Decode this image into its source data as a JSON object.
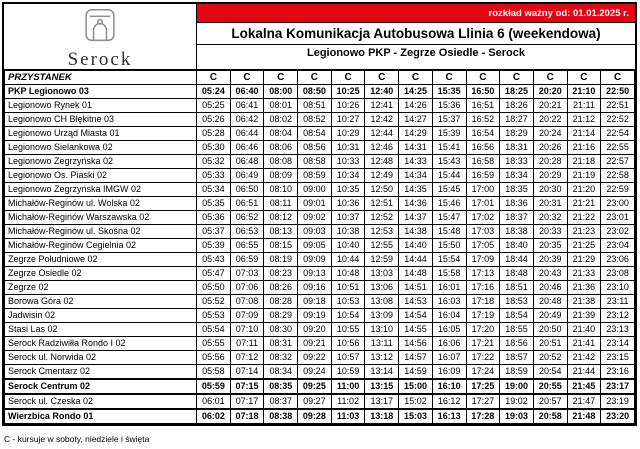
{
  "colors": {
    "banner_bg": "#e30613",
    "banner_text": "#ffffff",
    "logo_gray": "#8f8f8f"
  },
  "header": {
    "validity": "rozkład ważny od: 01.01.2025 r.",
    "title": "Lokalna Komunikacja Autobusowa Llinia 6 (weekendowa)",
    "route": "Legionowo PKP - Zegrze Osiedle - Serock",
    "brand": "Serock"
  },
  "table": {
    "stop_header": "PRZYSTANEK",
    "course_labels": [
      "C",
      "C",
      "C",
      "C",
      "C",
      "C",
      "C",
      "C",
      "C",
      "C",
      "C",
      "C",
      "C"
    ],
    "rows": [
      {
        "stop": "PKP Legionowo 03",
        "bold": true,
        "thick_top": false,
        "times": [
          "05:24",
          "06:40",
          "08:00",
          "08:50",
          "10:25",
          "12:40",
          "14:25",
          "15:35",
          "16:50",
          "18:25",
          "20:20",
          "21:10",
          "22:50"
        ]
      },
      {
        "stop": "Legionowo Rynek 01",
        "bold": false,
        "thick_top": false,
        "times": [
          "05:25",
          "06:41",
          "08:01",
          "08:51",
          "10:26",
          "12:41",
          "14:26",
          "15:36",
          "16:51",
          "18:26",
          "20:21",
          "21:11",
          "22:51"
        ]
      },
      {
        "stop": "Legionowo CH Błękitne 03",
        "bold": false,
        "thick_top": false,
        "times": [
          "05:26",
          "06:42",
          "08:02",
          "08:52",
          "10:27",
          "12:42",
          "14:27",
          "15:37",
          "16:52",
          "18:27",
          "20:22",
          "21:12",
          "22:52"
        ]
      },
      {
        "stop": "Legionowo Urząd Miasta 01",
        "bold": false,
        "thick_top": false,
        "times": [
          "05:28",
          "06:44",
          "08:04",
          "08:54",
          "10:29",
          "12:44",
          "14:29",
          "15:39",
          "16:54",
          "18:29",
          "20:24",
          "21:14",
          "22:54"
        ]
      },
      {
        "stop": "Legionowo Sielankowa 02",
        "bold": false,
        "thick_top": false,
        "times": [
          "05:30",
          "06:46",
          "08:06",
          "08:56",
          "10:31",
          "12:46",
          "14:31",
          "15:41",
          "16:56",
          "18:31",
          "20:26",
          "21:16",
          "22:55"
        ]
      },
      {
        "stop": "Legionowo Zegrzyńska 02",
        "bold": false,
        "thick_top": false,
        "times": [
          "05:32",
          "06:48",
          "08:08",
          "08:58",
          "10:33",
          "12:48",
          "14:33",
          "15:43",
          "16:58",
          "18:33",
          "20:28",
          "21:18",
          "22:57"
        ]
      },
      {
        "stop": "Legionowo Os. Piaski 02",
        "bold": false,
        "thick_top": false,
        "times": [
          "05:33",
          "06:49",
          "08:09",
          "08:59",
          "10:34",
          "12:49",
          "14:34",
          "15:44",
          "16:59",
          "18:34",
          "20:29",
          "21:19",
          "22:58"
        ]
      },
      {
        "stop": "Legionowo Zegrzyńska IMGW 02",
        "bold": false,
        "thick_top": false,
        "times": [
          "05:34",
          "06:50",
          "08:10",
          "09:00",
          "10:35",
          "12:50",
          "14:35",
          "15:45",
          "17:00",
          "18:35",
          "20:30",
          "21:20",
          "22:59"
        ]
      },
      {
        "stop": "Michałów-Reginów ul. Wolska 02",
        "bold": false,
        "thick_top": false,
        "times": [
          "05:35",
          "06:51",
          "08:11",
          "09:01",
          "10:36",
          "12:51",
          "14:36",
          "15:46",
          "17:01",
          "18:36",
          "20:31",
          "21:21",
          "23:00"
        ]
      },
      {
        "stop": "Michałów-Reginów Warszawska 02",
        "bold": false,
        "thick_top": false,
        "times": [
          "05:36",
          "06:52",
          "08:12",
          "09:02",
          "10:37",
          "12:52",
          "14:37",
          "15:47",
          "17:02",
          "18:37",
          "20:32",
          "21:22",
          "23:01"
        ]
      },
      {
        "stop": "Michałów-Reginów ul. Skośna 02",
        "bold": false,
        "thick_top": false,
        "times": [
          "05:37",
          "06:53",
          "08:13",
          "09:03",
          "10:38",
          "12:53",
          "14:38",
          "15:48",
          "17:03",
          "18:38",
          "20:33",
          "21:23",
          "23:02"
        ]
      },
      {
        "stop": "Michałów-Reginów Cegielnia 02",
        "bold": false,
        "thick_top": false,
        "times": [
          "05:39",
          "06:55",
          "08:15",
          "09:05",
          "10:40",
          "12:55",
          "14:40",
          "15:50",
          "17:05",
          "18:40",
          "20:35",
          "21:25",
          "23:04"
        ]
      },
      {
        "stop": "Zegrze Południowe 02",
        "bold": false,
        "thick_top": false,
        "times": [
          "05:43",
          "06:59",
          "08:19",
          "09:09",
          "10:44",
          "12:59",
          "14:44",
          "15:54",
          "17:09",
          "18:44",
          "20:39",
          "21:29",
          "23:06"
        ]
      },
      {
        "stop": "Zegrze Osiedle 02",
        "bold": false,
        "thick_top": false,
        "times": [
          "05:47",
          "07:03",
          "08:23",
          "09:13",
          "10:48",
          "13:03",
          "14:48",
          "15:58",
          "17:13",
          "18:48",
          "20:43",
          "21:33",
          "23:08"
        ]
      },
      {
        "stop": "Zegrze 02",
        "bold": false,
        "thick_top": false,
        "times": [
          "05:50",
          "07:06",
          "08:26",
          "09:16",
          "10:51",
          "13:06",
          "14:51",
          "16:01",
          "17:16",
          "18:51",
          "20:46",
          "21:36",
          "23:10"
        ]
      },
      {
        "stop": "Borowa Góra 02",
        "bold": false,
        "thick_top": false,
        "times": [
          "05:52",
          "07:08",
          "08:28",
          "09:18",
          "10:53",
          "13:08",
          "14:53",
          "16:03",
          "17:18",
          "18:53",
          "20:48",
          "21:38",
          "23:11"
        ]
      },
      {
        "stop": "Jadwisin 02",
        "bold": false,
        "thick_top": false,
        "times": [
          "05:53",
          "07:09",
          "08:29",
          "09:19",
          "10:54",
          "13:09",
          "14:54",
          "16:04",
          "17:19",
          "18:54",
          "20:49",
          "21:39",
          "23:12"
        ]
      },
      {
        "stop": "Stasi Las 02",
        "bold": false,
        "thick_top": false,
        "times": [
          "05:54",
          "07:10",
          "08:30",
          "09:20",
          "10:55",
          "13:10",
          "14:55",
          "16:05",
          "17:20",
          "18:55",
          "20:50",
          "21:40",
          "23:13"
        ]
      },
      {
        "stop": "Serock Radziwiłła Rondo I 02",
        "bold": false,
        "thick_top": false,
        "times": [
          "05:55",
          "07:11",
          "08:31",
          "09:21",
          "10:56",
          "13:11",
          "14:56",
          "16:06",
          "17:21",
          "18:56",
          "20:51",
          "21:41",
          "23:14"
        ]
      },
      {
        "stop": "Serock ul. Norwida 02",
        "bold": false,
        "thick_top": false,
        "times": [
          "05:56",
          "07:12",
          "08:32",
          "09:22",
          "10:57",
          "13:12",
          "14:57",
          "16:07",
          "17:22",
          "18:57",
          "20:52",
          "21:42",
          "23:15"
        ]
      },
      {
        "stop": "Serock Cmentarz 02",
        "bold": false,
        "thick_top": false,
        "times": [
          "05:58",
          "07:14",
          "08:34",
          "09:24",
          "10:59",
          "13:14",
          "14:59",
          "16:09",
          "17:24",
          "18:59",
          "20:54",
          "21:44",
          "23:16"
        ]
      },
      {
        "stop": "Serock Centrum 02",
        "bold": true,
        "thick_top": true,
        "times": [
          "05:59",
          "07:15",
          "08:35",
          "09:25",
          "11:00",
          "13:15",
          "15:00",
          "16:10",
          "17:25",
          "19:00",
          "20:55",
          "21:45",
          "23:17"
        ]
      },
      {
        "stop": "Serock ul. Czeska 02",
        "bold": false,
        "thick_top": true,
        "times": [
          "06:01",
          "07:17",
          "08:37",
          "09:27",
          "11:02",
          "13:17",
          "15:02",
          "16:12",
          "17:27",
          "19:02",
          "20:57",
          "21:47",
          "23:19"
        ]
      },
      {
        "stop": "Wierzbica Rondo 01",
        "bold": true,
        "thick_top": true,
        "times": [
          "06:02",
          "07:18",
          "08:38",
          "09:28",
          "11:03",
          "13:18",
          "15:03",
          "16:13",
          "17:28",
          "19:03",
          "20:58",
          "21:48",
          "23:20"
        ]
      }
    ]
  },
  "footer": {
    "legend": "C - kursuje w soboty, niedziele i święta"
  }
}
